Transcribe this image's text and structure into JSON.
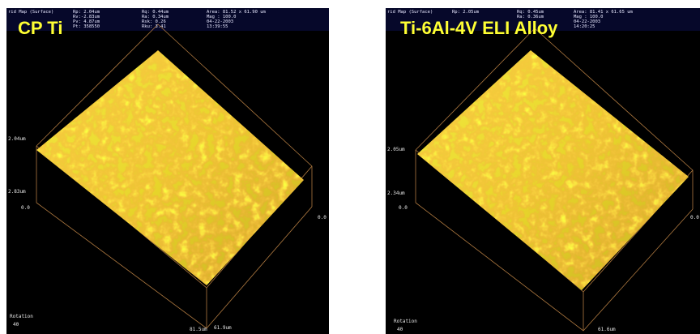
{
  "panels": [
    {
      "title": "CP Ti",
      "header": [
        [
          "rid Map (Surface)"
        ],
        [
          "Rp: 2.04um",
          "Rv:-2.83um",
          "Pv: 4.87um",
          "Pt: 358550"
        ],
        [
          "Rq: 0.44um",
          "Ra: 0.34um",
          "Rsk: 0.26",
          "Rku: 3.41"
        ],
        [
          "Area: 81.52 x 61.90 um",
          "Mag : 100.0",
          "04-22-2003",
          "13:39:55"
        ]
      ],
      "axis_labels": [
        "2.04um",
        "2.83um",
        "0.0",
        "0.0",
        "81.5um",
        "61.9um",
        "Rotation",
        "40"
      ]
    },
    {
      "title": "Ti-6Al-4V ELI Alloy",
      "header": [
        [
          "rid Map (Surface)"
        ],
        [
          "Rp: 2.05um"
        ],
        [
          "Rq: 0.45um",
          "Ra: 0.36um"
        ],
        [
          "Area: 81.41 x 61.65 um",
          "Mag : 100.0",
          "04-22-2003",
          "14:20:25"
        ]
      ],
      "axis_labels": [
        "2.05um",
        "2.34um",
        "0.0",
        "0.0",
        "61.6um",
        "Rotation",
        "40"
      ]
    }
  ]
}
